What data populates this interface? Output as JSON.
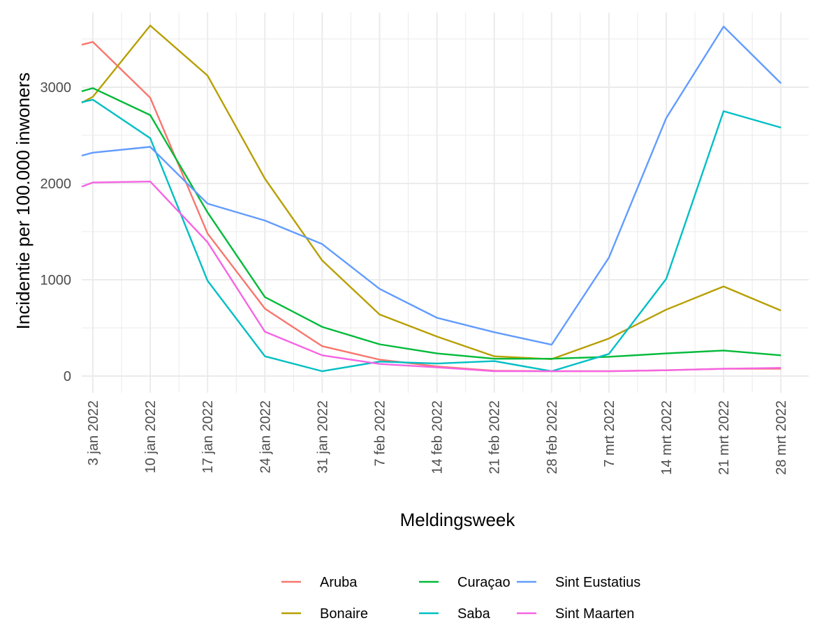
{
  "chart_data": {
    "type": "line",
    "title": "",
    "xlabel": "Meldingsweek",
    "ylabel": "Incidentie per 100.000 inwoners",
    "categories": [
      "3 jan 2022",
      "10 jan 2022",
      "17 jan 2022",
      "24 jan 2022",
      "31 jan 2022",
      "7 feb 2022",
      "14 feb 2022",
      "21 feb 2022",
      "28 feb 2022",
      "7 mrt 2022",
      "14 mrt 2022",
      "21 mrt 2022",
      "28 mrt 2022"
    ],
    "x_partial_left": "27 dec 2021",
    "yticks": [
      0,
      1000,
      2000,
      3000
    ],
    "ylim": [
      -100,
      3700
    ],
    "grid": true,
    "legend_position": "bottom",
    "series": [
      {
        "name": "Aruba",
        "color": "#F8766D",
        "start": 3320,
        "values": [
          3470,
          2890,
          1480,
          700,
          310,
          170,
          100,
          55,
          50,
          50,
          60,
          75,
          75
        ]
      },
      {
        "name": "Bonaire",
        "color": "#B79F00",
        "start": 2580,
        "values": [
          2900,
          3640,
          3120,
          2050,
          1200,
          640,
          410,
          205,
          175,
          390,
          690,
          930,
          680
        ]
      },
      {
        "name": "Curaçao",
        "color": "#00BA38",
        "start": 2820,
        "values": [
          2990,
          2710,
          1700,
          820,
          510,
          330,
          235,
          180,
          180,
          200,
          235,
          265,
          215
        ]
      },
      {
        "name": "Saba",
        "color": "#00BFC4",
        "start": 2730,
        "values": [
          2870,
          2470,
          990,
          205,
          50,
          150,
          130,
          155,
          50,
          230,
          1010,
          2750,
          2580
        ]
      },
      {
        "name": "Sint Eustatius",
        "color": "#619CFF",
        "start": 2160,
        "values": [
          2320,
          2380,
          1790,
          1615,
          1370,
          905,
          605,
          455,
          325,
          1230,
          2680,
          3630,
          3040
        ]
      },
      {
        "name": "Sint Maarten",
        "color": "#F564E3",
        "start": 1790,
        "values": [
          2010,
          2020,
          1390,
          460,
          215,
          125,
          90,
          50,
          50,
          50,
          60,
          75,
          85
        ]
      }
    ]
  }
}
